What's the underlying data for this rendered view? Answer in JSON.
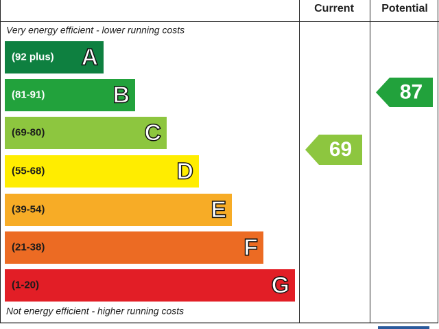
{
  "header": {
    "current": "Current",
    "potential": "Potential"
  },
  "top_note": "Very energy efficient - lower running costs",
  "bottom_note": "Not energy efficient - higher running costs",
  "bands": [
    {
      "range": "(92 plus)",
      "letter": "A",
      "color": "#0e8040",
      "text_color": "#ffffff"
    },
    {
      "range": "(81-91)",
      "letter": "B",
      "color": "#22a23c",
      "text_color": "#ffffff"
    },
    {
      "range": "(69-80)",
      "letter": "C",
      "color": "#8dc63f",
      "text_color": "#1a1a1a"
    },
    {
      "range": "(55-68)",
      "letter": "D",
      "color": "#ffed00",
      "text_color": "#1a1a1a"
    },
    {
      "range": "(39-54)",
      "letter": "E",
      "color": "#f7ac26",
      "text_color": "#1a1a1a"
    },
    {
      "range": "(21-38)",
      "letter": "F",
      "color": "#ec6b23",
      "text_color": "#1a1a1a"
    },
    {
      "range": "(1-20)",
      "letter": "G",
      "color": "#e21e26",
      "text_color": "#1a1a1a"
    }
  ],
  "current": {
    "value": "69",
    "color": "#8dc63f"
  },
  "potential": {
    "value": "87",
    "color": "#22a23c"
  }
}
